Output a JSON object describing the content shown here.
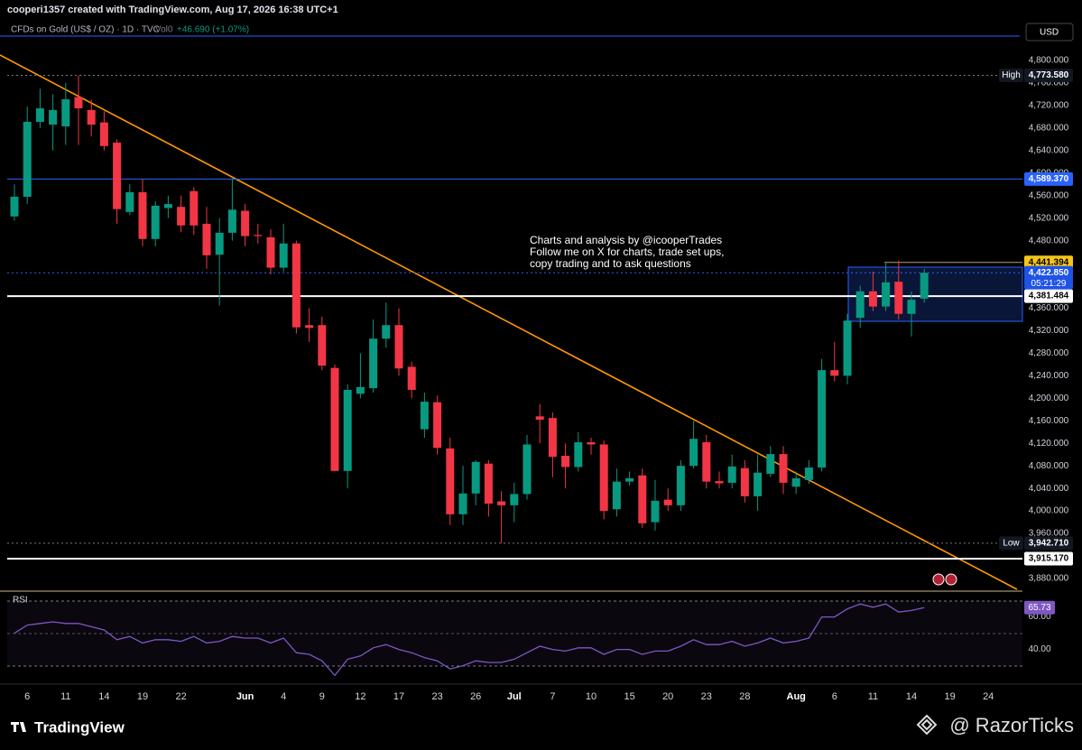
{
  "header": {
    "credit": "cooperi1357 created with TradingView.com, Aug 17, 2026 16:38 UTC+1",
    "symbol": "CFDs on Gold (US$ / OZ) · 1D · TVC",
    "volume": "Vol0",
    "change": "+46.690 (+1.07%)",
    "currency": "USD"
  },
  "chart_data": {
    "type": "candlestick",
    "categories": [
      null,
      "6",
      null,
      null,
      "11",
      null,
      null,
      "14",
      null,
      null,
      "19",
      null,
      null,
      "22",
      null,
      null,
      null,
      null,
      "Jun",
      null,
      null,
      "4",
      null,
      null,
      "9",
      null,
      null,
      "12",
      null,
      null,
      "17",
      null,
      null,
      "23",
      null,
      null,
      "26",
      null,
      null,
      "Jul",
      null,
      null,
      "7",
      null,
      null,
      "10",
      null,
      null,
      "15",
      null,
      null,
      "20",
      null,
      null,
      "23",
      null,
      null,
      "28",
      null,
      null,
      null,
      "Aug",
      null,
      null,
      "6",
      null,
      null,
      "11",
      null,
      null,
      "14",
      null,
      null,
      "19",
      null,
      null,
      "24"
    ],
    "open": [
      4523,
      4558,
      4691,
      4686,
      4683,
      4735,
      4712,
      4690,
      4654,
      4531,
      4566,
      4483,
      4538,
      4540,
      4568,
      4510,
      4455,
      4494,
      4533,
      4490,
      4486,
      4432,
      4475,
      4330,
      4330,
      4254,
      4071,
      4208,
      4218,
      4306,
      4330,
      4256,
      4145,
      4193,
      4111,
      3994,
      4031,
      4084,
      4017,
      4010,
      4030,
      4168,
      4165,
      4098,
      4078,
      4122,
      4118,
      4003,
      4052,
      4063,
      3980,
      4020,
      4010,
      4080,
      4122,
      4053,
      4050,
      4076,
      4026,
      4066,
      4101,
      4043,
      4055,
      4077,
      4250,
      4240,
      4343,
      4390,
      4363,
      4407,
      4350,
      4377,
      null,
      null,
      null,
      null,
      null
    ],
    "high": [
      4580,
      4718,
      4750,
      4740,
      4760,
      4773.58,
      4730,
      4710,
      4660,
      4580,
      4590,
      4550,
      4560,
      4560,
      4575,
      4540,
      4520,
      4590,
      4545,
      4510,
      4500,
      4510,
      4480,
      4360,
      4345,
      4260,
      4225,
      4280,
      4340,
      4370,
      4360,
      4265,
      4210,
      4205,
      4130,
      4080,
      4090,
      4090,
      4035,
      4050,
      4135,
      4190,
      4175,
      4120,
      4140,
      4130,
      4125,
      4075,
      4070,
      4075,
      4055,
      4040,
      4090,
      4160,
      4135,
      4070,
      4100,
      4090,
      4100,
      4115,
      4115,
      4070,
      4090,
      4270,
      4300,
      4350,
      4400,
      4425,
      4440,
      4445,
      4390,
      4430,
      null,
      null,
      null,
      null,
      null
    ],
    "low": [
      4515,
      4545,
      4680,
      4640,
      4650,
      4650,
      4665,
      4640,
      4510,
      4525,
      4470,
      4470,
      4520,
      4495,
      4490,
      4430,
      4365,
      4480,
      4470,
      4475,
      4420,
      4425,
      4315,
      4300,
      4250,
      4070,
      4040,
      4200,
      4210,
      4290,
      4240,
      4200,
      4130,
      4100,
      3975,
      3975,
      4010,
      3990,
      3942.71,
      3980,
      4020,
      4120,
      4060,
      4040,
      4070,
      4100,
      3985,
      3990,
      4045,
      3970,
      3965,
      4000,
      4000,
      4075,
      4040,
      4040,
      4040,
      4015,
      4000,
      4060,
      4030,
      4030,
      4048,
      4070,
      4230,
      4225,
      4325,
      4355,
      4355,
      4340,
      4310,
      4370,
      null,
      null,
      null,
      null,
      null
    ],
    "close": [
      4558,
      4691,
      4715,
      4712,
      4731,
      4715,
      4686,
      4648,
      4536,
      4566,
      4483,
      4542,
      4545,
      4507,
      4507,
      4454,
      4494,
      4535,
      4488,
      4488,
      4432,
      4475,
      4326,
      4325,
      4258,
      4071,
      4215,
      4220,
      4306,
      4330,
      4253,
      4215,
      4194,
      4112,
      3994,
      4031,
      4087,
      4013,
      4010,
      4030,
      4118,
      4162,
      4096,
      4078,
      4122,
      4118,
      4000,
      4052,
      4058,
      3978,
      4018,
      4010,
      4080,
      4128,
      4052,
      4049,
      4079,
      4026,
      4068,
      4101,
      4050,
      4058,
      4077,
      4250,
      4240,
      4338,
      4390,
      4363,
      4406,
      4350,
      4375,
      4422.85,
      null,
      null,
      null,
      null,
      null
    ],
    "up_color": "#089981",
    "down_color": "#f23645",
    "ylim": [
      3857.5,
      4862.5
    ],
    "yticks": [
      {
        "value": 4800,
        "label": "4,800.000"
      },
      {
        "value": 4760,
        "label": "4,760.000"
      },
      {
        "value": 4720,
        "label": "4,720.000"
      },
      {
        "value": 4680,
        "label": "4,680.000"
      },
      {
        "value": 4640,
        "label": "4,640.000"
      },
      {
        "value": 4600,
        "label": "4,600.000"
      },
      {
        "value": 4560,
        "label": "4,560.000"
      },
      {
        "value": 4520,
        "label": "4,520.000"
      },
      {
        "value": 4480,
        "label": "4,480.000"
      },
      {
        "value": 4360,
        "label": "4,360.000"
      },
      {
        "value": 4320,
        "label": "4,320.000"
      },
      {
        "value": 4280,
        "label": "4,280.000"
      },
      {
        "value": 4240,
        "label": "4,240.000"
      },
      {
        "value": 4200,
        "label": "4,200.000"
      },
      {
        "value": 4160,
        "label": "4,160.000"
      },
      {
        "value": 4120,
        "label": "4,120.000"
      },
      {
        "value": 4080,
        "label": "4,080.000"
      },
      {
        "value": 4040,
        "label": "4,040.000"
      },
      {
        "value": 4000,
        "label": "4,000.000"
      },
      {
        "value": 3960,
        "label": "3,960.000"
      },
      {
        "value": 3880,
        "label": "3,880.000"
      }
    ],
    "grid": false,
    "price_lines": [
      {
        "value": 4773.58,
        "label": "4,773.580",
        "tag": "High",
        "color": "#787b86",
        "style": "dotted",
        "tag_color": "#131722",
        "text_color": "#ffffff"
      },
      {
        "value": 4589.37,
        "label": "4,589.370",
        "color": "#2962ff",
        "style": "solid",
        "tag_color": "#2962ff",
        "text_color": "#ffffff"
      },
      {
        "value": 4441.394,
        "label": "4,441.394",
        "color": "#b2a36a",
        "style": "right",
        "tag_color": "#f5c518",
        "text_color": "#000000"
      },
      {
        "value": 4422.85,
        "label": "4,422.850",
        "countdown": "05:21:29",
        "color": "#2962ff",
        "style": "dotted",
        "tag_color": "#1e53e5",
        "text_color": "#ffffff"
      },
      {
        "value": 4381.484,
        "label": "4,381.484",
        "color": "#ffffff",
        "style": "thick",
        "tag_color": "#ffffff",
        "text_color": "#000000"
      },
      {
        "value": 3942.71,
        "label": "3,942.710",
        "tag": "Low",
        "color": "#787b86",
        "style": "dotted",
        "tag_color": "#131722",
        "text_color": "#ffffff"
      },
      {
        "value": 3915.17,
        "label": "3,915.170",
        "color": "#ffffff",
        "style": "thick",
        "tag_color": "#ffffff",
        "text_color": "#000000"
      }
    ],
    "annotation": [
      "Charts and analysis by @icooperTrades",
      "Follow me on X for charts, trade set ups,",
      "copy trading and to ask questions"
    ],
    "rsi": {
      "label": "RSI",
      "color": "#7e57c2",
      "values": [
        50,
        55,
        56,
        57,
        56,
        56,
        54,
        52,
        46,
        48,
        44,
        46,
        46,
        45,
        48,
        44,
        45,
        48,
        47,
        47,
        44,
        47,
        38,
        37,
        33,
        24,
        34,
        36,
        41,
        43,
        40,
        38,
        35,
        33,
        28,
        30,
        33,
        32,
        32,
        34,
        38,
        42,
        40,
        39,
        41,
        41,
        37,
        40,
        40,
        37,
        39,
        39,
        42,
        46,
        43,
        43,
        45,
        42,
        44,
        47,
        44,
        45,
        47,
        60,
        60,
        65,
        68,
        66,
        68,
        63,
        64,
        65.73,
        null,
        null,
        null,
        null,
        null
      ],
      "ylim": [
        22,
        72
      ],
      "yticks": [
        {
          "value": 60,
          "label": "60.00"
        },
        {
          "value": 40,
          "label": "40.00"
        }
      ]
    }
  },
  "footer": {
    "brand": "TradingView",
    "watermark": "@ RazorTicks"
  }
}
